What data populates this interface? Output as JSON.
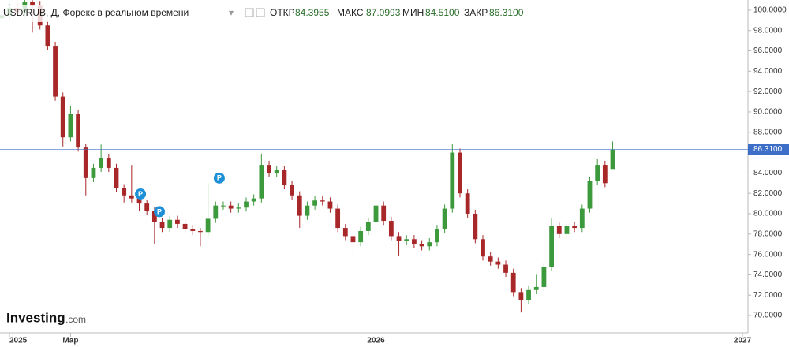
{
  "chart_data": {
    "type": "candlestick",
    "title": "USD/RUB, Д, Форекс в реальном времени",
    "header": {
      "open_label": "ОТКР",
      "open": "84.3955",
      "high_label": "МАКС",
      "high": "87.0993",
      "low_label": "МИН",
      "low": "84.5100",
      "close_label": "ЗАКР",
      "close": "86.3100"
    },
    "brand": {
      "name": "Investing",
      "suffix": ".com"
    },
    "up_color": "#3c9a3c",
    "down_color": "#a8282a",
    "x": [
      -0.25,
      0,
      0.25,
      0.5,
      0.75,
      1,
      1.25,
      1.5,
      1.75,
      2,
      2.25,
      2.5,
      2.75,
      3,
      3.25,
      3.5,
      3.75,
      4,
      4.25,
      4.5,
      4.75,
      5,
      5.25,
      5.5,
      5.75,
      6,
      6.25,
      6.5,
      6.75,
      7,
      7.25,
      7.5,
      7.75,
      8,
      8.25,
      8.5,
      8.75,
      9,
      9.25,
      9.5,
      9.75,
      10,
      10.25,
      10.5,
      10.75,
      11,
      11.25,
      11.5,
      11.75,
      12,
      12.25,
      12.5,
      12.75,
      13,
      13.25,
      13.5,
      13.75,
      14,
      14.25,
      14.5,
      14.75,
      15,
      15.25,
      15.5,
      15.75,
      16,
      16.25,
      16.5,
      16.75,
      17,
      17.25,
      17.5,
      17.75,
      18,
      18.25,
      18.5,
      18.75,
      19,
      19.25,
      19.5,
      19.75
    ],
    "open": [
      99.2,
      99.5,
      100.2,
      99.8,
      100.8,
      100.5,
      98.5,
      96.5,
      91.5,
      87.5,
      89.8,
      86.5,
      83.5,
      84.5,
      85.5,
      84.5,
      82.5,
      81.8,
      81.5,
      81,
      80.3,
      79.2,
      78.6,
      79.4,
      79,
      78.5,
      78.3,
      78.2,
      79.5,
      80.8,
      80.8,
      80.5,
      80.6,
      81.2,
      81.5,
      84.8,
      84,
      84.3,
      82.8,
      81.8,
      79.8,
      80.8,
      81.3,
      81.2,
      80.5,
      78.6,
      77.8,
      77.2,
      78.3,
      79.2,
      80.8,
      79.3,
      77.8,
      77.3,
      77.5,
      77,
      76.8,
      77.2,
      78.5,
      80.5,
      86,
      82,
      80,
      77.5,
      75.8,
      75.3,
      75,
      74.2,
      72.3,
      71.5,
      72.5,
      72.8,
      74.8,
      78.8,
      78,
      78.8,
      78.6,
      80.5,
      83.2,
      84.8,
      84.3955
    ],
    "high": [
      99.9,
      100.6,
      100.6,
      101.5,
      101.2,
      100.9,
      98.9,
      96.9,
      91.9,
      90.6,
      90.2,
      86.9,
      84.9,
      86.8,
      85.9,
      84.9,
      82.9,
      84.8,
      81.9,
      81.4,
      80.7,
      79.6,
      79.8,
      79.8,
      79.4,
      78.9,
      78.6,
      83,
      81.2,
      81.2,
      81.2,
      81,
      81.6,
      81.9,
      85.9,
      85.2,
      84.7,
      84.7,
      83.2,
      82.2,
      81.2,
      81.7,
      81.7,
      81.6,
      80.9,
      79,
      78.2,
      78.7,
      79.6,
      81.5,
      81.2,
      79.7,
      78.2,
      77.9,
      77.9,
      77.4,
      77.6,
      78.9,
      80.9,
      86.9,
      86.4,
      82.4,
      80.4,
      77.9,
      76.2,
      75.7,
      75.4,
      74.6,
      72.7,
      72.9,
      74,
      75.2,
      79.6,
      79.2,
      79.2,
      79.2,
      80.9,
      83.6,
      85.4,
      85.2,
      87.0993
    ],
    "low": [
      98.8,
      99.1,
      99.4,
      99.4,
      97.8,
      98.1,
      96.1,
      91.1,
      86.6,
      87.1,
      86.1,
      81.8,
      83.1,
      84.1,
      84.1,
      82.1,
      81.1,
      81.1,
      80.3,
      79.9,
      77,
      78.2,
      78.2,
      78.6,
      78.1,
      77.9,
      76.8,
      77.8,
      79.1,
      80.4,
      80.1,
      80.1,
      80.2,
      80.8,
      81.1,
      83.6,
      83.6,
      82.4,
      81.4,
      78.6,
      79.4,
      80.4,
      80.8,
      80.1,
      78.2,
      77.4,
      75.7,
      76.8,
      77.9,
      78.8,
      78.9,
      77.4,
      75.9,
      76.9,
      76.6,
      76.4,
      76.4,
      76.8,
      78.1,
      80.1,
      81.6,
      79.6,
      77.1,
      75.4,
      74.9,
      74.6,
      73.8,
      71.9,
      70.3,
      71.1,
      72.1,
      72.4,
      74.4,
      77.6,
      77.6,
      78.2,
      78.2,
      80.1,
      82.8,
      82.6,
      84.51
    ],
    "close": [
      99.5,
      100.2,
      99.8,
      100.8,
      100.5,
      98.5,
      96.5,
      91.5,
      87.5,
      89.8,
      86.5,
      83.5,
      84.5,
      85.5,
      84.5,
      82.5,
      81.8,
      81.5,
      81,
      80.3,
      79.2,
      78.6,
      79.4,
      79,
      78.5,
      78.3,
      78.2,
      79.5,
      80.8,
      80.8,
      80.5,
      80.6,
      81.2,
      81.5,
      84.8,
      84,
      84.3,
      82.8,
      81.8,
      79.8,
      80.8,
      81.3,
      81.2,
      80.5,
      78.6,
      77.8,
      77.2,
      78.3,
      79.2,
      80.8,
      79.3,
      77.8,
      77.3,
      77.5,
      77,
      76.8,
      77.2,
      78.5,
      80.5,
      86,
      82,
      80,
      77.5,
      75.8,
      75.3,
      75,
      74.2,
      72.3,
      71.5,
      72.5,
      72.8,
      74.8,
      78.8,
      78,
      78.8,
      78.6,
      80.5,
      83.2,
      84.8,
      83,
      86.31
    ],
    "price_line": {
      "value": 86.31,
      "label": "86.3100",
      "color": "#3d6fc8"
    },
    "annotations": [
      {
        "x": 4.29,
        "y": 81.94,
        "text": "P"
      },
      {
        "x": 4.91,
        "y": 80.2,
        "text": "P"
      },
      {
        "x": 6.87,
        "y": 83.5,
        "text": "P"
      }
    ],
    "xlim": [
      -0.31,
      24.18
    ],
    "xticks": [
      {
        "value": 0,
        "label": "2025"
      },
      {
        "value": 2,
        "label": "Мар"
      },
      {
        "value": 12,
        "label": "2026"
      },
      {
        "value": 24,
        "label": "2027"
      }
    ],
    "ylim": [
      68.3,
      101.0
    ],
    "yticks": [
      {
        "value": 70,
        "label": "70.0000"
      },
      {
        "value": 72,
        "label": "72.0000"
      },
      {
        "value": 74,
        "label": "74.0000"
      },
      {
        "value": 76,
        "label": "76.0000"
      },
      {
        "value": 78,
        "label": "78.0000"
      },
      {
        "value": 80,
        "label": "80.0000"
      },
      {
        "value": 82,
        "label": "82.0000"
      },
      {
        "value": 84,
        "label": "84.0000"
      },
      {
        "value": 86,
        "label": "86.0000"
      },
      {
        "value": 88,
        "label": "88.0000"
      },
      {
        "value": 90,
        "label": "90.0000"
      },
      {
        "value": 92,
        "label": "92.0000"
      },
      {
        "value": 94,
        "label": "94.0000"
      },
      {
        "value": 96,
        "label": "96.0000"
      },
      {
        "value": 98,
        "label": "98.0000"
      },
      {
        "value": 100,
        "label": "100.0000"
      }
    ]
  }
}
